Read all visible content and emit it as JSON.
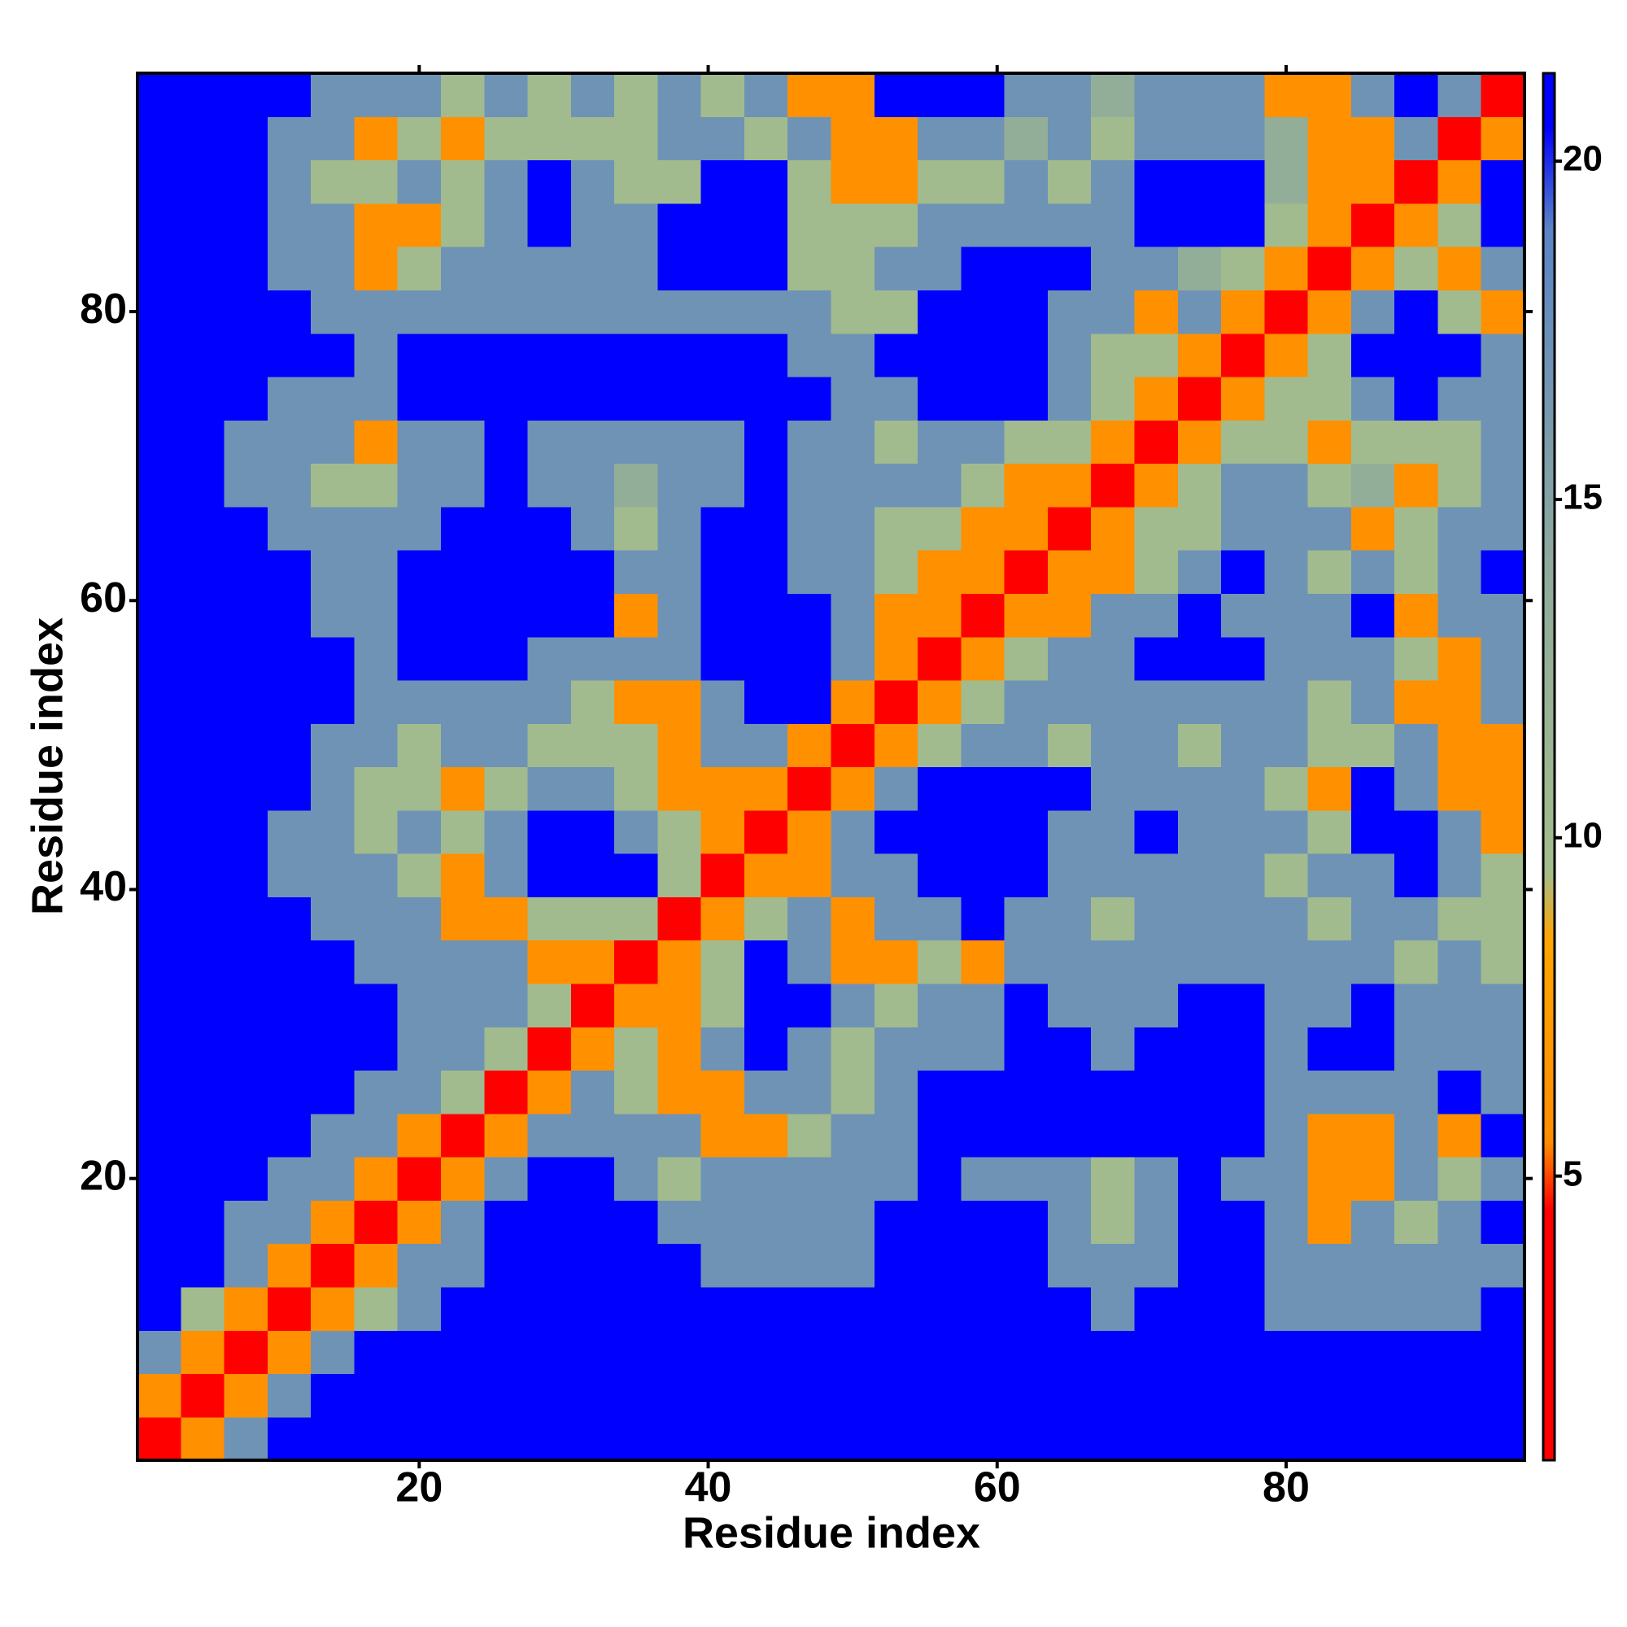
{
  "chart_data": {
    "type": "heatmap",
    "xlabel": "Residue index",
    "ylabel": "Residue index",
    "xlim": [
      0.5,
      96.5
    ],
    "ylim": [
      0.5,
      96.5
    ],
    "xticks": [
      20,
      40,
      60,
      80
    ],
    "yticks": [
      20,
      40,
      60,
      80
    ],
    "clim": [
      0.8,
      21.3
    ],
    "cticks": [
      5,
      10,
      15,
      20
    ],
    "colorscale": [
      {
        "value": 0.8,
        "color": "#ff0000"
      },
      {
        "value": 4.5,
        "color": "#ff0000"
      },
      {
        "value": 5.5,
        "color": "#ff8c00"
      },
      {
        "value": 8.5,
        "color": "#ffa500"
      },
      {
        "value": 9.5,
        "color": "#a3bd8c"
      },
      {
        "value": 14,
        "color": "#8faa9c"
      },
      {
        "value": 19,
        "color": "#5a84c6"
      },
      {
        "value": 20.5,
        "color": "#0000ff"
      },
      {
        "value": 21.3,
        "color": "#0000ff"
      }
    ],
    "x": [
      2,
      5,
      8,
      11,
      14,
      17,
      20,
      23,
      26,
      29,
      32,
      35,
      38,
      41,
      44,
      47,
      50,
      53,
      56,
      59,
      62,
      65,
      68,
      71,
      74,
      77,
      80,
      83,
      86,
      89,
      92,
      95
    ],
    "y": [
      2,
      5,
      8,
      11,
      14,
      17,
      20,
      23,
      26,
      29,
      32,
      35,
      38,
      41,
      44,
      47,
      50,
      53,
      56,
      59,
      62,
      65,
      68,
      71,
      74,
      77,
      80,
      83,
      86,
      89,
      92,
      95
    ],
    "z": [
      [
        3,
        6,
        17,
        21,
        21,
        21,
        21,
        21,
        21,
        21,
        21,
        21,
        21,
        21,
        21,
        21,
        21,
        21,
        21,
        21,
        21,
        21,
        21,
        21,
        21,
        21,
        21,
        21,
        21,
        21,
        21,
        21
      ],
      [
        6,
        3,
        6,
        17,
        21,
        21,
        21,
        21,
        21,
        21,
        21,
        21,
        21,
        21,
        21,
        21,
        21,
        21,
        21,
        21,
        21,
        21,
        21,
        21,
        21,
        21,
        21,
        21,
        21,
        21,
        21,
        21
      ],
      [
        17,
        6,
        3,
        6,
        17,
        21,
        21,
        21,
        21,
        21,
        21,
        21,
        21,
        21,
        21,
        21,
        21,
        21,
        21,
        21,
        21,
        21,
        21,
        21,
        21,
        21,
        21,
        21,
        21,
        21,
        21,
        21
      ],
      [
        21,
        10,
        6,
        3,
        6,
        10,
        17,
        21,
        21,
        21,
        21,
        21,
        21,
        21,
        21,
        21,
        21,
        21,
        21,
        21,
        21,
        21,
        17,
        21,
        21,
        21,
        17,
        17,
        17,
        17,
        17,
        21
      ],
      [
        21,
        21,
        17,
        6,
        3,
        6,
        17,
        17,
        21,
        21,
        21,
        21,
        21,
        17,
        17,
        17,
        17,
        21,
        21,
        21,
        21,
        17,
        17,
        17,
        21,
        21,
        17,
        17,
        17,
        17,
        17,
        17
      ],
      [
        21,
        21,
        17,
        17,
        6,
        3,
        6,
        17,
        21,
        21,
        21,
        21,
        17,
        17,
        17,
        17,
        17,
        21,
        21,
        21,
        21,
        17,
        10,
        17,
        21,
        21,
        17,
        6,
        17,
        10,
        17,
        21
      ],
      [
        21,
        21,
        21,
        17,
        17,
        6,
        3,
        6,
        17,
        21,
        21,
        17,
        10,
        17,
        17,
        17,
        17,
        17,
        21,
        17,
        17,
        17,
        10,
        17,
        21,
        17,
        17,
        6,
        6,
        17,
        10,
        17
      ],
      [
        21,
        21,
        21,
        21,
        17,
        17,
        6,
        3,
        6,
        17,
        17,
        17,
        17,
        6,
        6,
        10,
        17,
        17,
        21,
        21,
        21,
        21,
        21,
        21,
        21,
        21,
        17,
        6,
        6,
        17,
        6,
        21
      ],
      [
        21,
        21,
        21,
        21,
        21,
        17,
        17,
        10,
        3,
        6,
        17,
        10,
        6,
        6,
        17,
        17,
        10,
        17,
        21,
        21,
        21,
        21,
        21,
        21,
        21,
        21,
        17,
        17,
        17,
        17,
        21,
        17
      ],
      [
        21,
        21,
        21,
        21,
        21,
        21,
        17,
        17,
        10,
        3,
        6,
        10,
        6,
        17,
        21,
        17,
        10,
        17,
        17,
        17,
        21,
        21,
        17,
        21,
        21,
        21,
        17,
        21,
        21,
        17,
        17,
        17
      ],
      [
        21,
        21,
        21,
        21,
        21,
        21,
        17,
        17,
        17,
        10,
        3,
        6,
        6,
        10,
        21,
        21,
        17,
        10,
        17,
        17,
        21,
        17,
        17,
        17,
        21,
        21,
        17,
        17,
        21,
        17,
        17,
        17
      ],
      [
        21,
        21,
        21,
        21,
        21,
        17,
        17,
        17,
        17,
        6,
        6,
        3,
        6,
        10,
        21,
        17,
        6,
        6,
        10,
        6,
        17,
        17,
        17,
        17,
        17,
        17,
        17,
        17,
        17,
        10,
        17,
        10
      ],
      [
        21,
        21,
        21,
        21,
        17,
        17,
        17,
        6,
        6,
        10,
        10,
        10,
        3,
        6,
        10,
        17,
        6,
        17,
        17,
        21,
        17,
        17,
        10,
        17,
        17,
        17,
        17,
        10,
        17,
        17,
        10,
        10
      ],
      [
        21,
        21,
        21,
        17,
        17,
        17,
        10,
        6,
        17,
        21,
        21,
        21,
        10,
        3,
        6,
        6,
        17,
        17,
        21,
        21,
        21,
        17,
        17,
        17,
        17,
        17,
        10,
        17,
        17,
        21,
        17,
        10
      ],
      [
        21,
        21,
        21,
        17,
        17,
        10,
        17,
        10,
        17,
        21,
        21,
        17,
        10,
        6,
        3,
        6,
        17,
        21,
        21,
        21,
        21,
        17,
        17,
        21,
        17,
        17,
        17,
        10,
        21,
        21,
        17,
        6
      ],
      [
        21,
        21,
        21,
        21,
        17,
        10,
        10,
        6,
        10,
        17,
        17,
        10,
        6,
        6,
        6,
        3,
        6,
        17,
        21,
        21,
        21,
        21,
        17,
        17,
        17,
        17,
        10,
        6,
        21,
        17,
        6,
        6
      ],
      [
        21,
        21,
        21,
        21,
        17,
        17,
        10,
        17,
        17,
        10,
        10,
        10,
        6,
        17,
        17,
        6,
        3,
        6,
        10,
        17,
        17,
        10,
        17,
        17,
        10,
        17,
        17,
        10,
        10,
        17,
        6,
        6
      ],
      [
        21,
        21,
        21,
        21,
        21,
        17,
        17,
        17,
        17,
        17,
        10,
        6,
        6,
        17,
        21,
        21,
        6,
        3,
        6,
        10,
        17,
        17,
        17,
        17,
        17,
        17,
        17,
        10,
        17,
        6,
        6,
        17
      ],
      [
        21,
        21,
        21,
        21,
        21,
        17,
        21,
        21,
        21,
        17,
        17,
        17,
        17,
        21,
        21,
        21,
        17,
        6,
        3,
        6,
        10,
        17,
        17,
        21,
        21,
        21,
        17,
        17,
        17,
        10,
        6,
        17
      ],
      [
        21,
        21,
        21,
        21,
        17,
        17,
        21,
        21,
        21,
        21,
        21,
        6,
        17,
        21,
        21,
        21,
        17,
        6,
        6,
        3,
        6,
        6,
        17,
        17,
        21,
        17,
        17,
        17,
        21,
        6,
        17,
        17
      ],
      [
        21,
        21,
        21,
        21,
        17,
        17,
        21,
        21,
        21,
        21,
        21,
        17,
        17,
        21,
        21,
        17,
        17,
        10,
        6,
        6,
        3,
        6,
        6,
        10,
        17,
        21,
        17,
        10,
        17,
        10,
        17,
        21
      ],
      [
        21,
        21,
        21,
        17,
        17,
        17,
        17,
        21,
        21,
        21,
        17,
        10,
        17,
        21,
        21,
        17,
        17,
        10,
        10,
        6,
        6,
        3,
        6,
        10,
        10,
        17,
        17,
        17,
        6,
        10,
        17,
        17
      ],
      [
        21,
        21,
        17,
        17,
        10,
        10,
        17,
        17,
        21,
        17,
        17,
        13,
        17,
        17,
        21,
        17,
        17,
        17,
        17,
        10,
        6,
        6,
        3,
        6,
        10,
        17,
        17,
        10,
        13,
        6,
        10,
        17
      ],
      [
        21,
        21,
        17,
        17,
        17,
        6,
        17,
        17,
        21,
        17,
        17,
        17,
        17,
        17,
        21,
        17,
        17,
        10,
        17,
        17,
        10,
        10,
        6,
        3,
        6,
        10,
        10,
        6,
        10,
        10,
        10,
        17
      ],
      [
        21,
        21,
        21,
        17,
        17,
        17,
        21,
        21,
        21,
        21,
        21,
        21,
        21,
        21,
        21,
        21,
        17,
        17,
        21,
        21,
        21,
        17,
        10,
        6,
        3,
        6,
        10,
        10,
        17,
        21,
        17,
        17
      ],
      [
        21,
        21,
        21,
        21,
        21,
        17,
        21,
        21,
        21,
        21,
        21,
        21,
        21,
        21,
        21,
        17,
        17,
        21,
        21,
        21,
        21,
        17,
        10,
        10,
        6,
        3,
        6,
        10,
        21,
        21,
        21,
        17
      ],
      [
        21,
        21,
        21,
        21,
        17,
        17,
        17,
        17,
        17,
        17,
        17,
        17,
        17,
        17,
        17,
        17,
        10,
        10,
        21,
        21,
        21,
        17,
        17,
        6,
        17,
        6,
        3,
        6,
        17,
        21,
        10,
        6
      ],
      [
        21,
        21,
        21,
        17,
        17,
        6,
        10,
        17,
        17,
        17,
        17,
        17,
        21,
        21,
        21,
        10,
        10,
        17,
        17,
        21,
        21,
        21,
        17,
        17,
        13,
        10,
        6,
        3,
        6,
        10,
        6,
        17
      ],
      [
        21,
        21,
        21,
        17,
        17,
        6,
        6,
        10,
        17,
        21,
        17,
        17,
        21,
        21,
        21,
        10,
        10,
        10,
        17,
        17,
        17,
        17,
        17,
        21,
        21,
        21,
        10,
        6,
        3,
        6,
        10,
        21
      ],
      [
        21,
        21,
        21,
        17,
        10,
        10,
        17,
        10,
        17,
        21,
        17,
        10,
        10,
        21,
        21,
        10,
        6,
        6,
        10,
        10,
        17,
        10,
        17,
        21,
        21,
        21,
        13,
        6,
        6,
        3,
        6,
        21
      ],
      [
        21,
        21,
        21,
        17,
        17,
        6,
        10,
        6,
        10,
        10,
        10,
        10,
        17,
        17,
        10,
        17,
        6,
        6,
        17,
        17,
        13,
        17,
        10,
        17,
        17,
        17,
        13,
        6,
        6,
        17,
        3,
        6
      ],
      [
        21,
        21,
        21,
        21,
        17,
        17,
        17,
        10,
        17,
        10,
        17,
        10,
        17,
        10,
        17,
        6,
        6,
        21,
        21,
        21,
        17,
        17,
        13,
        17,
        17,
        17,
        6,
        6,
        17,
        21,
        17,
        3
      ]
    ]
  }
}
